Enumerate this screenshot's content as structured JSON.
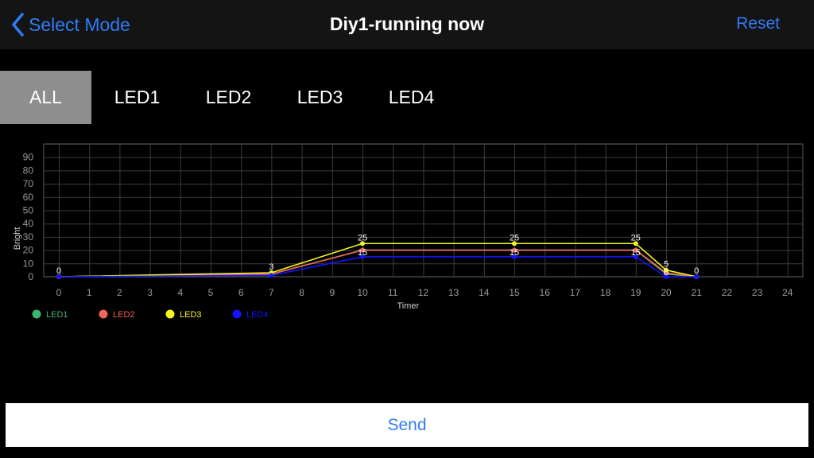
{
  "nav": {
    "back_label": "Select Mode",
    "title": "Diy1-running now",
    "reset_label": "Reset"
  },
  "tabs": [
    {
      "label": "ALL",
      "active": true
    },
    {
      "label": "LED1",
      "active": false
    },
    {
      "label": "LED2",
      "active": false
    },
    {
      "label": "LED3",
      "active": false
    },
    {
      "label": "LED4",
      "active": false
    }
  ],
  "colors": {
    "accent": "#2f7cf6",
    "tab_active_bg": "#8e8e8e",
    "led1": "#3cb371",
    "led2": "#f0645a",
    "led3": "#f5f51e",
    "led4": "#1414ff"
  },
  "chart_data": {
    "type": "line",
    "xlabel": "Timer",
    "ylabel": "Bright",
    "xlim": [
      0,
      24
    ],
    "ylim": [
      0,
      100
    ],
    "x_ticks": [
      0,
      1,
      2,
      3,
      4,
      5,
      6,
      7,
      8,
      9,
      10,
      11,
      12,
      13,
      14,
      15,
      16,
      17,
      18,
      19,
      20,
      21,
      22,
      23,
      24
    ],
    "y_ticks": [
      0,
      10,
      20,
      30,
      40,
      50,
      60,
      70,
      80,
      90
    ],
    "grid": true,
    "legend_position": "bottom-left",
    "series": [
      {
        "name": "LED1",
        "color": "#3cb371",
        "x": [
          0,
          7,
          10,
          15,
          19,
          20,
          21
        ],
        "y": [
          0,
          2,
          20,
          20,
          20,
          2,
          0
        ]
      },
      {
        "name": "LED2",
        "color": "#f0645a",
        "x": [
          0,
          7,
          10,
          15,
          19,
          20,
          21
        ],
        "y": [
          0,
          2,
          20,
          20,
          20,
          3,
          0
        ]
      },
      {
        "name": "LED3",
        "color": "#f5f51e",
        "x": [
          0,
          7,
          10,
          15,
          19,
          20,
          21
        ],
        "y": [
          0,
          3,
          25,
          25,
          25,
          5,
          0
        ]
      },
      {
        "name": "LED4",
        "color": "#1414ff",
        "x": [
          0,
          7,
          10,
          15,
          19,
          20,
          21
        ],
        "y": [
          0,
          1,
          15,
          15,
          15,
          0,
          0
        ]
      }
    ],
    "point_labels": [
      {
        "x": 0,
        "text": "0"
      },
      {
        "x": 7,
        "text": "3"
      },
      {
        "x": 10,
        "text": "25"
      },
      {
        "x": 10,
        "text": "15"
      },
      {
        "x": 15,
        "text": "25"
      },
      {
        "x": 15,
        "text": "15"
      },
      {
        "x": 19,
        "text": "25"
      },
      {
        "x": 19,
        "text": "15"
      },
      {
        "x": 20,
        "text": "5"
      },
      {
        "x": 20,
        "text": "0"
      },
      {
        "x": 21,
        "text": "0"
      }
    ]
  },
  "send_label": "Send"
}
